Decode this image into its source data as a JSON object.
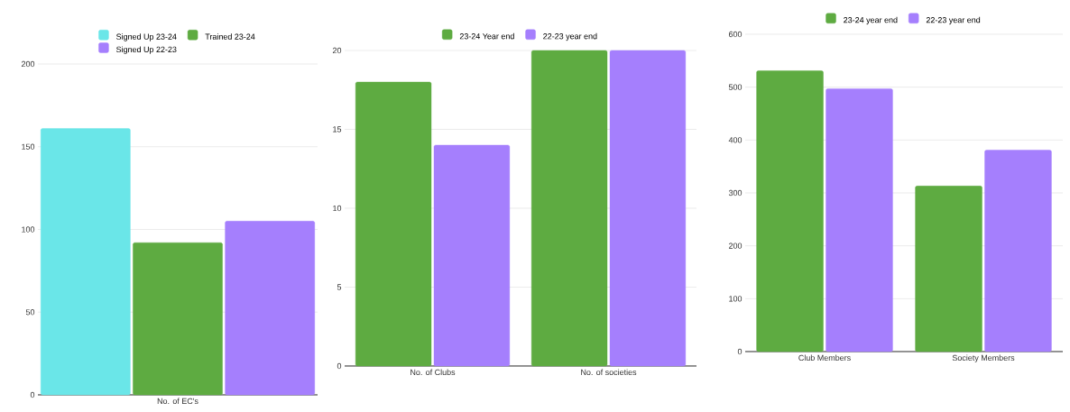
{
  "chart_data": [
    {
      "type": "bar",
      "categories": [
        "No. of EC's"
      ],
      "series": [
        {
          "name": "Signed Up 23-24",
          "color": "#6ae6e8",
          "values": [
            161
          ]
        },
        {
          "name": "Trained 23-24",
          "color": "#5eab41",
          "values": [
            92
          ]
        },
        {
          "name": "Signed Up 22-23",
          "color": "#a57ffd",
          "values": [
            105
          ]
        }
      ],
      "ylim": [
        0,
        200
      ],
      "yticks": [
        0,
        50,
        100,
        150,
        200
      ],
      "grid": "y",
      "legend": "top"
    },
    {
      "type": "bar",
      "categories": [
        "No. of Clubs",
        "No. of societies"
      ],
      "series": [
        {
          "name": "23-24 Year end",
          "color": "#5eab41",
          "values": [
            18,
            20
          ]
        },
        {
          "name": "22-23 year end",
          "color": "#a57ffd",
          "values": [
            14,
            20
          ]
        }
      ],
      "ylim": [
        0,
        20
      ],
      "yticks": [
        0,
        5,
        10,
        15,
        20
      ],
      "grid": "y",
      "legend": "top"
    },
    {
      "type": "bar",
      "categories": [
        "Club Members",
        "Society Members"
      ],
      "series": [
        {
          "name": "23-24 year end",
          "color": "#5eab41",
          "values": [
            531,
            313
          ]
        },
        {
          "name": "22-23 year end",
          "color": "#a57ffd",
          "values": [
            497,
            381
          ]
        }
      ],
      "ylim": [
        0,
        600
      ],
      "yticks": [
        0,
        100,
        200,
        300,
        400,
        500,
        600
      ],
      "grid": "y",
      "legend": "top"
    }
  ]
}
